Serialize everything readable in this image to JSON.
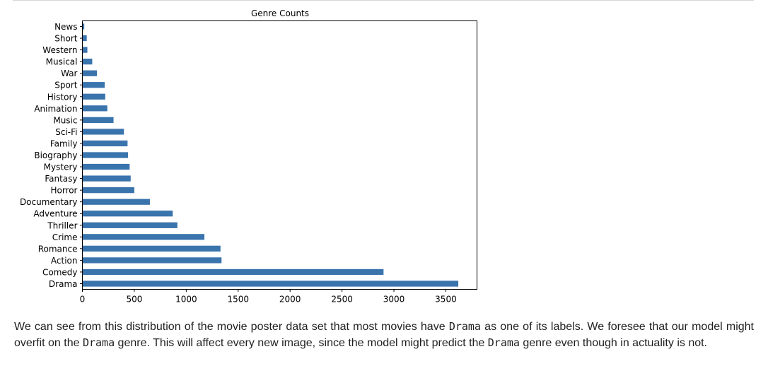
{
  "chart_data": {
    "type": "bar",
    "orientation": "horizontal",
    "title": "Genre Counts",
    "xlabel": "",
    "ylabel": "",
    "categories": [
      "Drama",
      "Comedy",
      "Action",
      "Romance",
      "Crime",
      "Thriller",
      "Adventure",
      "Documentary",
      "Horror",
      "Fantasy",
      "Mystery",
      "Biography",
      "Family",
      "Sci-Fi",
      "Music",
      "Animation",
      "History",
      "Sport",
      "War",
      "Musical",
      "Western",
      "Short",
      "News"
    ],
    "values": [
      3620,
      2900,
      1340,
      1330,
      1175,
      915,
      870,
      650,
      500,
      465,
      455,
      440,
      435,
      400,
      300,
      240,
      220,
      215,
      140,
      95,
      48,
      42,
      18
    ],
    "xlim": [
      0,
      3800
    ],
    "xticks": [
      0,
      500,
      1000,
      1500,
      2000,
      2500,
      3000,
      3500
    ],
    "bar_color": "#3a74ad",
    "grid": false,
    "legend": "none"
  },
  "caption": {
    "part1": "We can see from this distribution of the movie poster data set that most movies have ",
    "code1": "Drama",
    "part2": " as one of its labels. We foresee that our model might overfit on the ",
    "code2": "Drama",
    "part3": " genre. This will affect every new image, since the model might predict the ",
    "code3": "Drama",
    "part4": " genre even though in actuality is not."
  }
}
